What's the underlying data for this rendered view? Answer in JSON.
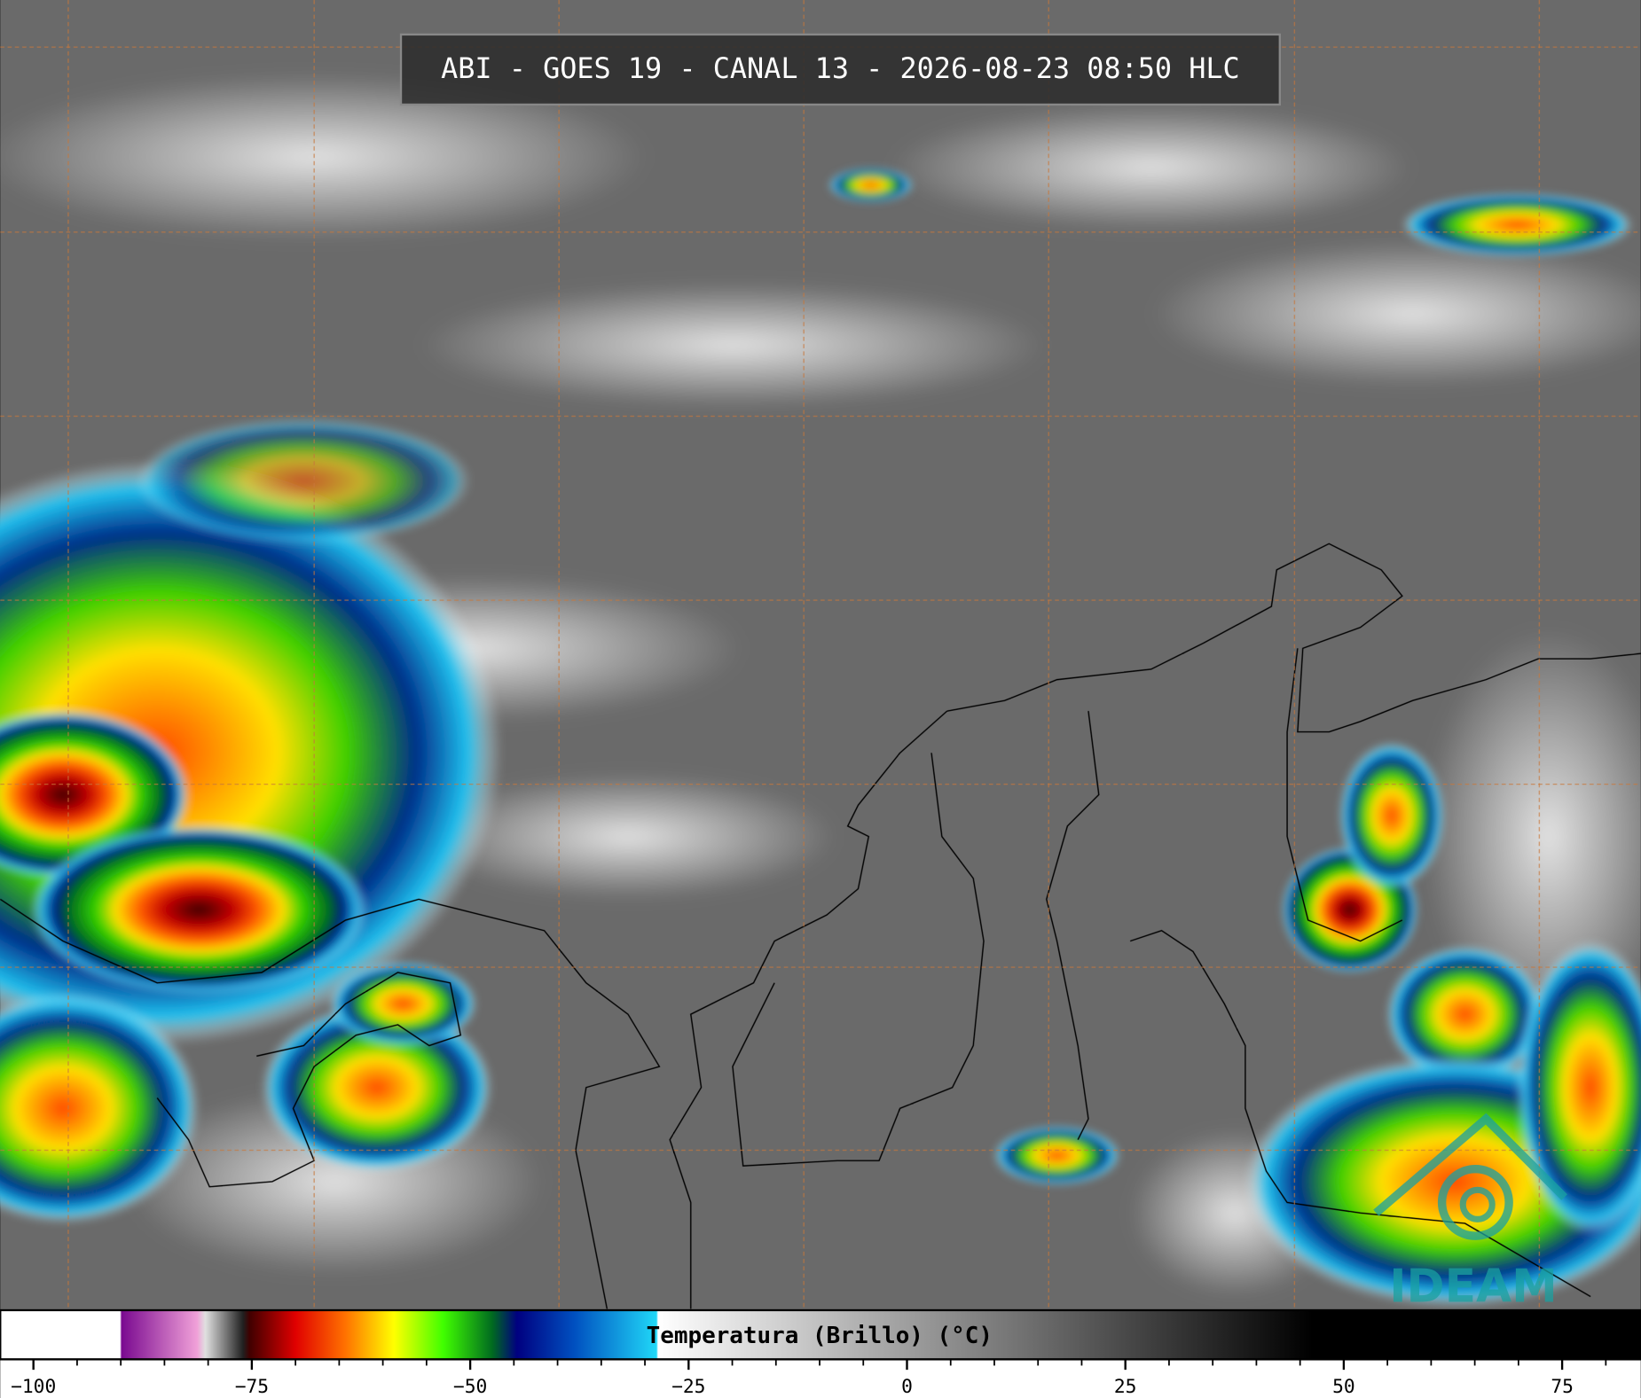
{
  "header": {
    "title": "ABI - GOES 19 - CANAL 13 - 2026-08-23 08:50 HLC"
  },
  "colorbar": {
    "label": "Temperatura (Brillo) (°C)",
    "xlim": [
      -103.8,
      84
    ],
    "xticks": [
      {
        "value": -100,
        "label": "−100"
      },
      {
        "value": -75,
        "label": "−75"
      },
      {
        "value": -50,
        "label": "−50"
      },
      {
        "value": -25,
        "label": "−25"
      },
      0,
      25,
      50,
      75
    ],
    "minor_ticks": [
      -95,
      -90,
      -85,
      -80,
      -70,
      -65,
      -60,
      -55,
      -45,
      -40,
      -35,
      -30,
      -20,
      -15,
      -10,
      -5,
      5,
      10,
      15,
      20,
      30,
      35,
      40,
      45,
      55,
      60,
      65,
      70,
      80
    ]
  },
  "logo": {
    "text": "IDEAM"
  }
}
